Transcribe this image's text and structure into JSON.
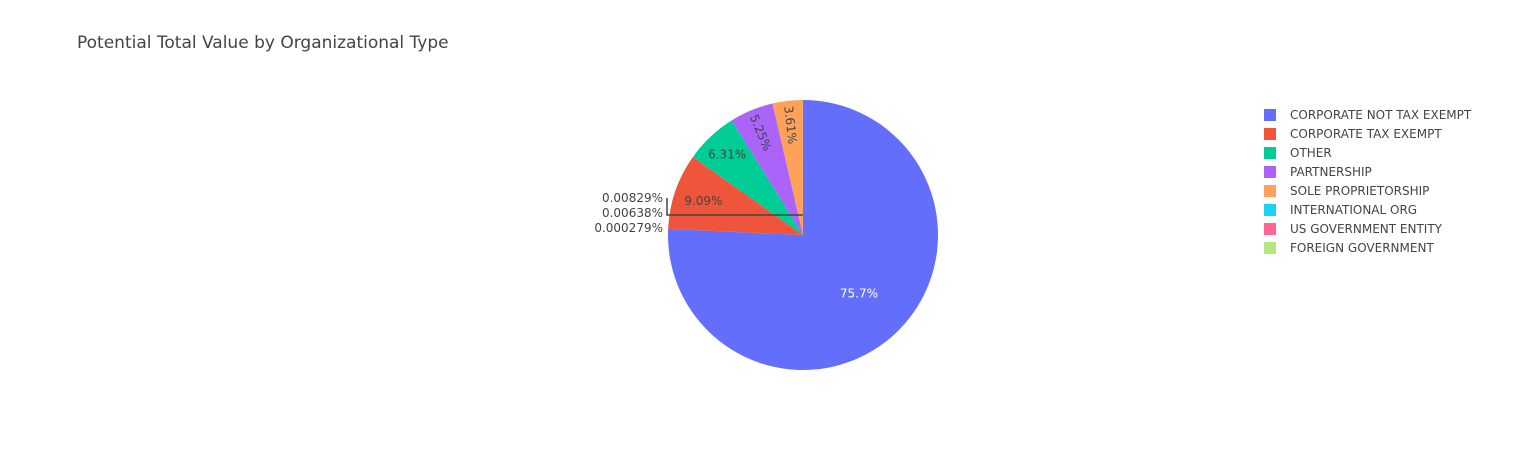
{
  "chart_data": {
    "type": "pie",
    "title": "Potential Total Value by Organizational Type",
    "legend_position": "top-right",
    "slices": [
      {
        "label": "CORPORATE NOT TAX EXEMPT",
        "percent": 75.7,
        "percent_text": "75.7%",
        "color": "#636efa",
        "text_color": "#ffffff",
        "text_position": "inside"
      },
      {
        "label": "CORPORATE TAX EXEMPT",
        "percent": 9.09,
        "percent_text": "9.09%",
        "color": "#ef553b",
        "text_color": "#444444",
        "text_position": "inside"
      },
      {
        "label": "OTHER",
        "percent": 6.31,
        "percent_text": "6.31%",
        "color": "#00cc96",
        "text_color": "#444444",
        "text_position": "inside"
      },
      {
        "label": "PARTNERSHIP",
        "percent": 5.25,
        "percent_text": "5.25%",
        "color": "#ab63fa",
        "text_color": "#444444",
        "text_position": "inside"
      },
      {
        "label": "SOLE PROPRIETORSHIP",
        "percent": 3.61,
        "percent_text": "3.61%",
        "color": "#ffa15a",
        "text_color": "#444444",
        "text_position": "inside"
      },
      {
        "label": "INTERNATIONAL ORG",
        "percent": 0.00829,
        "percent_text": "0.00829%",
        "color": "#19d3f3",
        "text_color": "#444444",
        "text_position": "outside"
      },
      {
        "label": "US GOVERNMENT ENTITY",
        "percent": 0.00638,
        "percent_text": "0.00638%",
        "color": "#ff6692",
        "text_color": "#444444",
        "text_position": "outside"
      },
      {
        "label": "FOREIGN GOVERNMENT",
        "percent": 0.000279,
        "percent_text": "0.000279%",
        "color": "#b6e880",
        "text_color": "#444444",
        "text_position": "outside"
      }
    ]
  }
}
